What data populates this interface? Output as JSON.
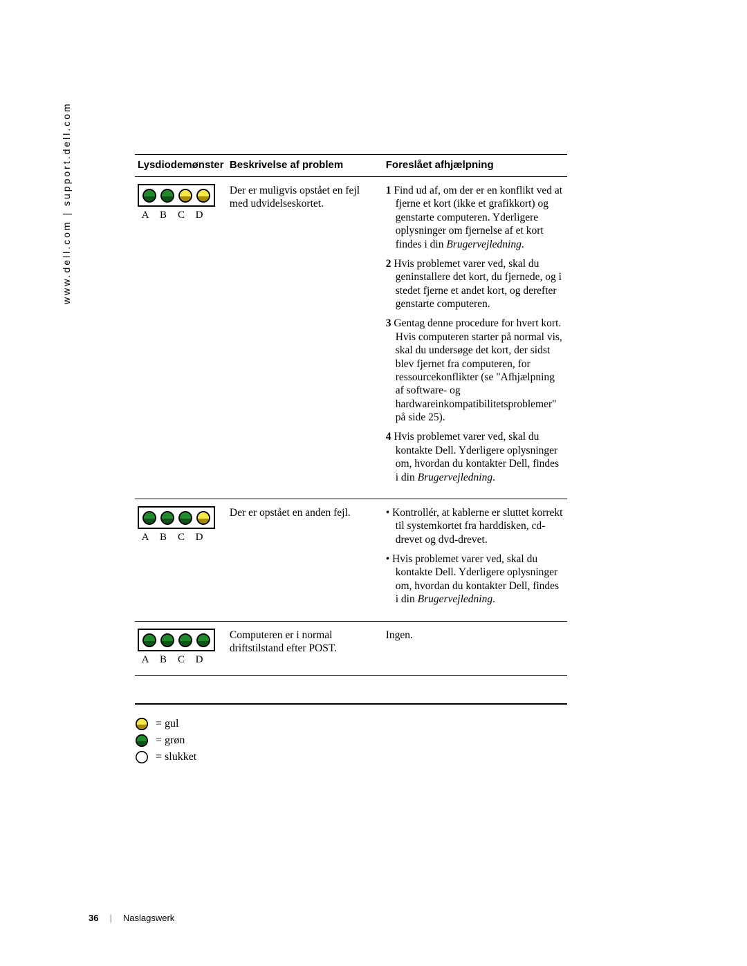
{
  "sidebar_text": "www.dell.com | support.dell.com",
  "headers": {
    "col1": "Lysdiodemønster",
    "col2": "Beskrivelse af problem",
    "col3": "Foreslået afhjælpning"
  },
  "led_colors": {
    "green": "#1f8b2a",
    "green_dark": "#0c5516",
    "yellow": "#f7e943",
    "yellow_dark": "#a88c00",
    "off_fill": "#ffffff",
    "stroke": "#000000"
  },
  "led_chars": {
    "a": "A",
    "b": "B",
    "c": "C",
    "d": "D"
  },
  "rows": [
    {
      "leds": [
        "green",
        "green",
        "yellow",
        "yellow"
      ],
      "desc": "Der er muligvis opstået en fejl med udvidelseskortet.",
      "fix_type": "steps",
      "steps": [
        {
          "n": "1",
          "text_a": "Find ud af, om der er en konflikt ved at fjerne et kort (ikke et grafikkort) og genstarte computeren. Yderligere oplysninger om fjernelse af et kort findes i din ",
          "italic": "Brugervejledning",
          "text_b": "."
        },
        {
          "n": "2",
          "text_a": "Hvis problemet varer ved, skal du geninstallere det kort, du fjernede, og i stedet fjerne et andet kort, og derefter genstarte computeren.",
          "italic": "",
          "text_b": ""
        },
        {
          "n": "3",
          "text_a": "Gentag denne procedure for hvert kort. Hvis computeren starter på normal vis, skal du undersøge det kort, der sidst blev fjernet fra computeren, for ressourcekonflikter (se \"Afhjælpning af software- og hardwareinkompatibilitetsproblemer\" på side 25).",
          "italic": "",
          "text_b": ""
        },
        {
          "n": "4",
          "text_a": "Hvis problemet varer ved, skal du kontakte Dell. Yderligere oplysninger om, hvordan du kontakter Dell, findes i din ",
          "italic": "Brugervejledning",
          "text_b": "."
        }
      ]
    },
    {
      "leds": [
        "green",
        "green",
        "green",
        "yellow"
      ],
      "desc": "Der er opstået en anden fejl.",
      "fix_type": "bullets",
      "bullets": [
        {
          "text_a": "Kontrollér, at kablerne er sluttet korrekt til systemkortet fra harddisken, cd-drevet og dvd-drevet.",
          "italic": "",
          "text_b": ""
        },
        {
          "text_a": "Hvis problemet varer ved, skal du kontakte Dell. Yderligere oplysninger om, hvordan du kontakter Dell, findes i din ",
          "italic": "Brugervejledning",
          "text_b": "."
        }
      ]
    },
    {
      "leds": [
        "green",
        "green",
        "green",
        "green"
      ],
      "desc": "Computeren er i normal driftstilstand efter POST.",
      "fix_type": "plain",
      "plain": "Ingen."
    }
  ],
  "legend": {
    "yellow": "= gul",
    "green": "= grøn",
    "off": "= slukket"
  },
  "footer": {
    "page": "36",
    "title": "Naslagswerk"
  }
}
